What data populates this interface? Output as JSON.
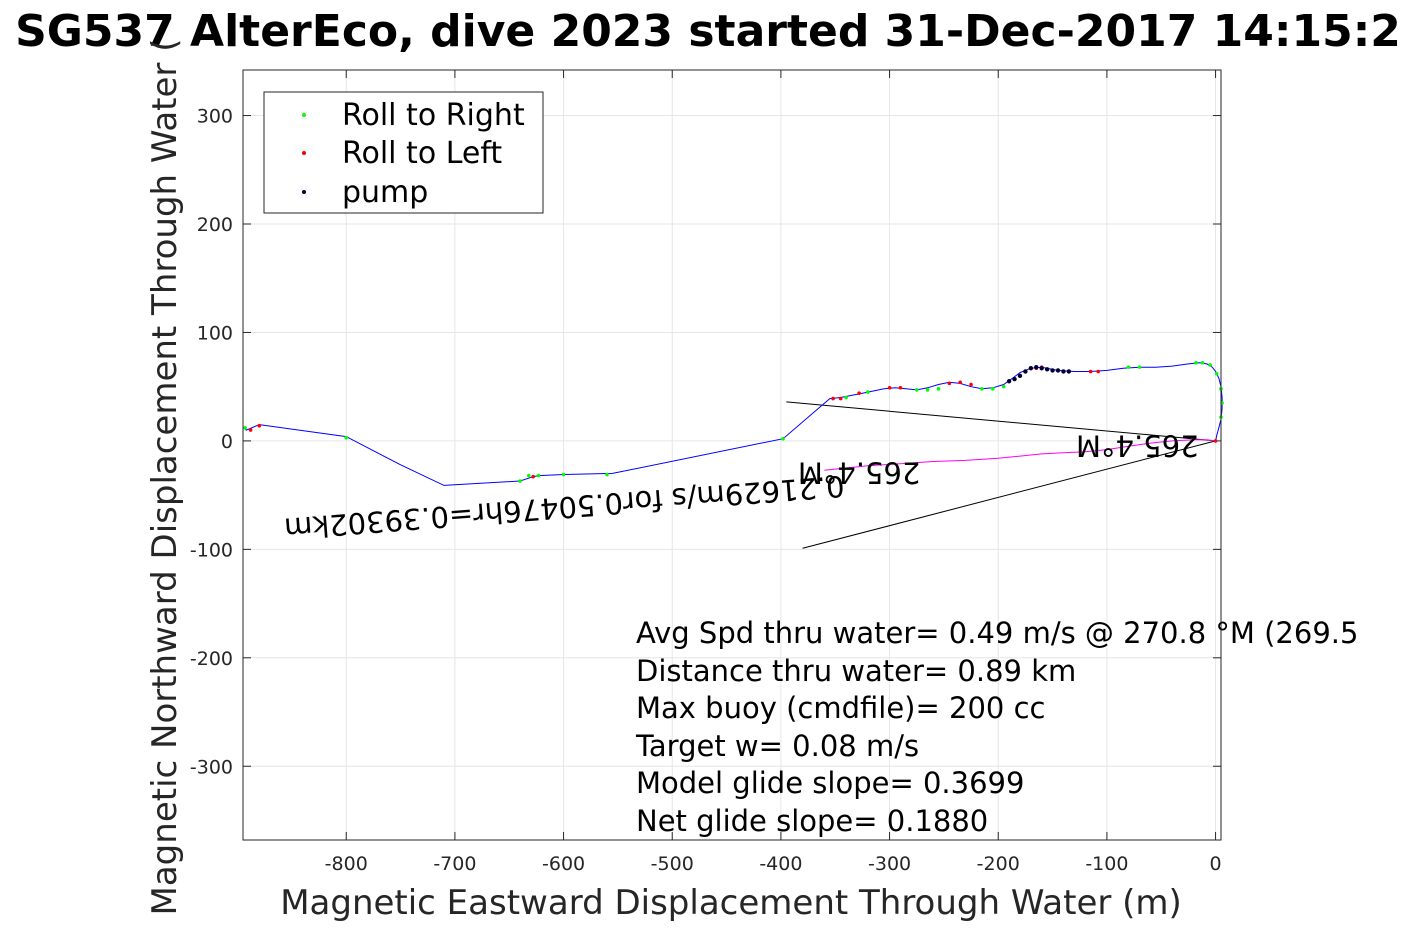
{
  "chart_data": {
    "type": "scatter",
    "title": "SG537 AlterEco, dive 2023 started 31-Dec-2017 14:15:2",
    "xlabel": "Magnetic Eastward Displacement Through Water (m)",
    "ylabel": "Magnetic Northward Displacement Through Water (",
    "xlim": [
      -895,
      5
    ],
    "ylim": [
      -368,
      342
    ],
    "xticks": [
      "-800",
      "-700",
      "-600",
      "-500",
      "-400",
      "-300",
      "-200",
      "-100",
      "0"
    ],
    "yticks": [
      "-300",
      "-200",
      "-100",
      "0",
      "100",
      "200",
      "300"
    ],
    "grid": true,
    "legend_position": "top-left",
    "legend": [
      {
        "name": "Roll to Right",
        "color": "#00ff00"
      },
      {
        "name": "Roll to Left",
        "color": "#ff0000"
      },
      {
        "name": "pump",
        "color": "#000033"
      }
    ],
    "track": {
      "color": "#0000ff",
      "points": [
        [
          0,
          0
        ],
        [
          1,
          5
        ],
        [
          3,
          12
        ],
        [
          5,
          20
        ],
        [
          6,
          30
        ],
        [
          6,
          40
        ],
        [
          5,
          50
        ],
        [
          3,
          58
        ],
        [
          0,
          64
        ],
        [
          -3,
          68
        ],
        [
          -8,
          71
        ],
        [
          -15,
          72
        ],
        [
          -25,
          71
        ],
        [
          -40,
          69
        ],
        [
          -55,
          68
        ],
        [
          -70,
          68
        ],
        [
          -85,
          67
        ],
        [
          -100,
          65
        ],
        [
          -115,
          64
        ],
        [
          -130,
          64
        ],
        [
          -145,
          65
        ],
        [
          -160,
          68
        ],
        [
          -170,
          67
        ],
        [
          -180,
          63
        ],
        [
          -188,
          57
        ],
        [
          -195,
          52
        ],
        [
          -205,
          49
        ],
        [
          -215,
          48
        ],
        [
          -225,
          50
        ],
        [
          -235,
          53
        ],
        [
          -245,
          54
        ],
        [
          -255,
          52
        ],
        [
          -265,
          49
        ],
        [
          -275,
          47
        ],
        [
          -285,
          48
        ],
        [
          -295,
          49
        ],
        [
          -305,
          48
        ],
        [
          -315,
          46
        ],
        [
          -325,
          44
        ],
        [
          -335,
          42
        ],
        [
          -345,
          40
        ],
        [
          -355,
          39
        ],
        [
          -398,
          2
        ],
        [
          -555,
          -30
        ],
        [
          -600,
          -31
        ],
        [
          -623,
          -32
        ],
        [
          -628,
          -33
        ],
        [
          -640,
          -37
        ],
        [
          -710,
          -41
        ],
        [
          -750,
          -22
        ],
        [
          -800,
          4
        ],
        [
          -880,
          15
        ],
        [
          -892,
          10
        ],
        [
          -895,
          13
        ]
      ]
    },
    "roll_right": [
      [
        5,
        22
      ],
      [
        6,
        35
      ],
      [
        5,
        48
      ],
      [
        1,
        62
      ],
      [
        -5,
        70
      ],
      [
        -12,
        72
      ],
      [
        -18,
        72
      ],
      [
        -70,
        68
      ],
      [
        -80,
        68
      ],
      [
        -195,
        50
      ],
      [
        -205,
        48
      ],
      [
        -215,
        48
      ],
      [
        -255,
        48
      ],
      [
        -265,
        47
      ],
      [
        -275,
        47
      ],
      [
        -320,
        45
      ],
      [
        -340,
        40
      ],
      [
        -398,
        2
      ],
      [
        -560,
        -31
      ],
      [
        -600,
        -31
      ],
      [
        -623,
        -32
      ],
      [
        -632,
        -32
      ],
      [
        -640,
        -37
      ],
      [
        -800,
        3
      ],
      [
        -893,
        12
      ]
    ],
    "roll_left": [
      [
        0,
        0
      ],
      [
        -108,
        64
      ],
      [
        -115,
        64
      ],
      [
        -160,
        68
      ],
      [
        -165,
        67
      ],
      [
        -225,
        52
      ],
      [
        -235,
        54
      ],
      [
        -245,
        53
      ],
      [
        -290,
        49
      ],
      [
        -300,
        49
      ],
      [
        -328,
        44
      ],
      [
        -345,
        39
      ],
      [
        -352,
        39
      ],
      [
        -628,
        -33
      ],
      [
        -880,
        14
      ],
      [
        -888,
        10
      ]
    ],
    "pump": [
      [
        -135,
        64
      ],
      [
        -140,
        64
      ],
      [
        -145,
        65
      ],
      [
        -150,
        65
      ],
      [
        -155,
        66
      ],
      [
        -160,
        67
      ],
      [
        -165,
        68
      ],
      [
        -170,
        67
      ],
      [
        -175,
        64
      ],
      [
        -180,
        60
      ],
      [
        -185,
        57
      ],
      [
        -190,
        55
      ]
    ],
    "pink_track": [
      [
        0,
        0
      ],
      [
        -8,
        1
      ],
      [
        -20,
        1
      ],
      [
        -40,
        0
      ],
      [
        -60,
        -2
      ],
      [
        -80,
        -5
      ],
      [
        -100,
        -8
      ],
      [
        -120,
        -10
      ],
      [
        -140,
        -11
      ],
      [
        -160,
        -12
      ],
      [
        -180,
        -14
      ],
      [
        -200,
        -16
      ],
      [
        -230,
        -18
      ],
      [
        -260,
        -19
      ],
      [
        -290,
        -21
      ],
      [
        -320,
        -23
      ],
      [
        -340,
        -25
      ],
      [
        -360,
        -27
      ]
    ],
    "direction_lines": [
      {
        "from": [
          0,
          0
        ],
        "to": [
          -395,
          36
        ]
      },
      {
        "from": [
          0,
          0
        ],
        "to": [
          -380,
          -99
        ]
      }
    ],
    "rotated_annotations": [
      {
        "text": "0.21629m/s for0.50476hr=0.39302km",
        "at": [
          -600,
          -52
        ],
        "rotate": 175.6
      },
      {
        "text": "265.4°M",
        "at": [
          -328,
          -20
        ],
        "rotate": 180
      },
      {
        "text": "265.4°M",
        "at": [
          -72,
          5
        ],
        "rotate": 180
      }
    ],
    "annotations": [
      "Avg Spd thru water=  0.49 m/s @ 270.8 °M (269.5",
      "Distance thru water=  0.89 km",
      "Max buoy (cmdfile)= 200 cc",
      "Target w= 0.08 m/s",
      "Model glide slope= 0.3699",
      "Net glide slope= 0.1880"
    ]
  }
}
